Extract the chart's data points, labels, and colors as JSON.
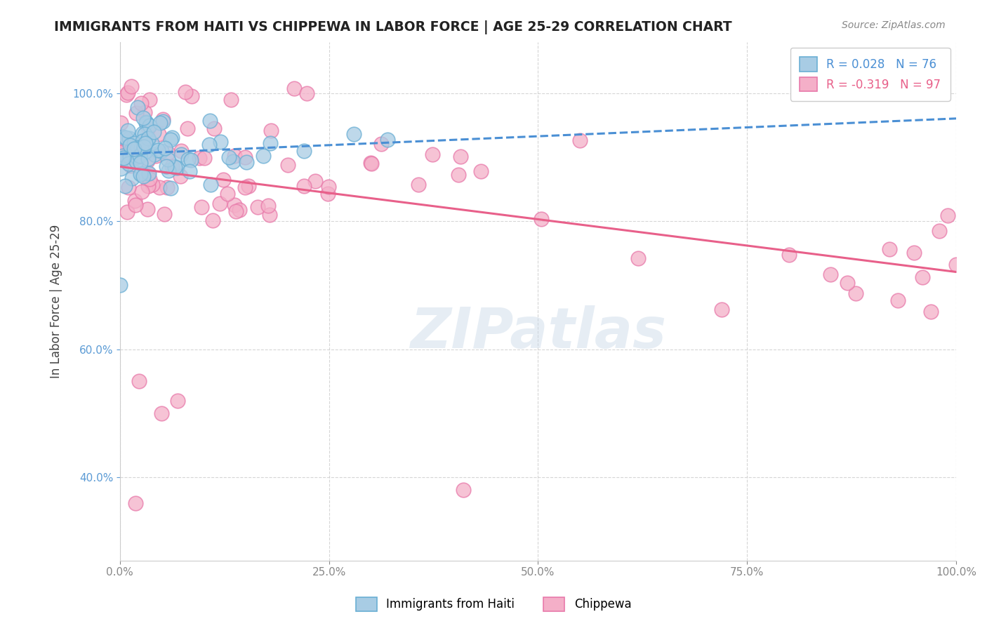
{
  "title": "IMMIGRANTS FROM HAITI VS CHIPPEWA IN LABOR FORCE | AGE 25-29 CORRELATION CHART",
  "source": "Source: ZipAtlas.com",
  "ylabel": "In Labor Force | Age 25-29",
  "xlim": [
    0.0,
    1.0
  ],
  "ylim": [
    0.27,
    1.08
  ],
  "xticks": [
    0.0,
    0.25,
    0.5,
    0.75,
    1.0
  ],
  "xticklabels": [
    "0.0%",
    "25.0%",
    "50.0%",
    "75.0%",
    "100.0%"
  ],
  "yticks": [
    0.4,
    0.6,
    0.8,
    1.0
  ],
  "yticklabels": [
    "40.0%",
    "60.0%",
    "80.0%",
    "100.0%"
  ],
  "haiti_color": "#a8cce4",
  "chippewa_color": "#f4afc8",
  "haiti_edge_color": "#6aafd4",
  "chippewa_edge_color": "#e87aaa",
  "haiti_line_color": "#4a8fd4",
  "chippewa_line_color": "#e8608a",
  "haiti_R": 0.028,
  "haiti_N": 76,
  "chippewa_R": -0.319,
  "chippewa_N": 97,
  "background_color": "#ffffff",
  "grid_color": "#cccccc",
  "watermark": "ZIPatlas",
  "tick_color": "#5b9bd5",
  "ylabel_color": "#444444",
  "title_color": "#222222",
  "source_color": "#888888"
}
